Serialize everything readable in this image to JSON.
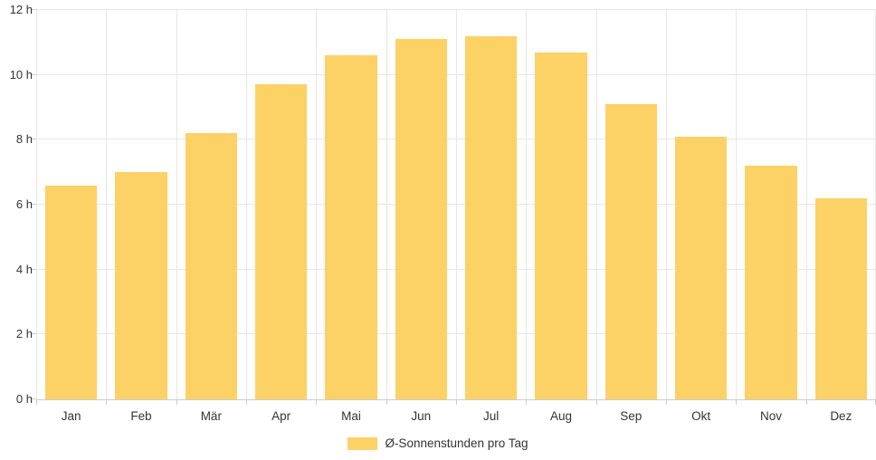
{
  "chart_data": {
    "type": "bar",
    "title": "",
    "categories": [
      "Jan",
      "Feb",
      "Mär",
      "Apr",
      "Mai",
      "Jun",
      "Jul",
      "Aug",
      "Sep",
      "Okt",
      "Nov",
      "Dez"
    ],
    "values": [
      6.6,
      7.0,
      8.2,
      9.7,
      10.6,
      11.1,
      11.2,
      10.7,
      9.1,
      8.1,
      7.2,
      6.2
    ],
    "series_name": "Ø-Sonnenstunden pro Tag",
    "xlabel": "",
    "ylabel": "",
    "ylim": [
      0,
      12
    ],
    "y_tick_step": 2,
    "y_tick_labels": [
      "0 h",
      "2 h",
      "4 h",
      "6 h",
      "8 h",
      "10 h",
      "12 h"
    ],
    "grid": true,
    "legend_position": "bottom-center",
    "colors": {
      "bar": "#FCD166",
      "grid_line": "#E7E7E7",
      "axis_line": "#CCCCCC",
      "tick": "#CCCCCC",
      "text": "#333333"
    }
  }
}
